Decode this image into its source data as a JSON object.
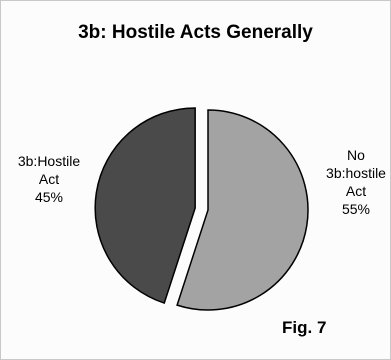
{
  "chart_data": {
    "type": "pie",
    "title": "3b: Hostile Acts Generally",
    "slices": [
      {
        "line1": "3b:Hostile",
        "line2": "",
        "line3": "Act",
        "value": 45,
        "pct_label": "45%",
        "color": "#4a4a4a",
        "exploded": true
      },
      {
        "line1": "No",
        "line2": "3b:hostile",
        "line3": "Act",
        "value": 55,
        "pct_label": "55%",
        "color": "#a3a3a3",
        "exploded": false
      }
    ],
    "legend": "none"
  },
  "figure_label": "Fig. 7"
}
